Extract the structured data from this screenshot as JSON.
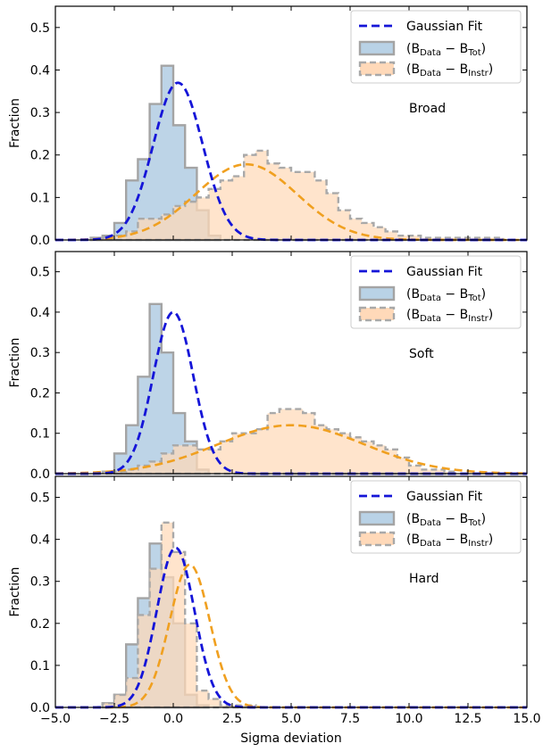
{
  "chart_data": {
    "type": "histogram",
    "layout": "3 vertically stacked panels sharing x-axis",
    "xlabel": "Sigma deviation",
    "ylabel": "Fraction",
    "xlim": [
      -5.0,
      15.0
    ],
    "ylim": [
      0.0,
      0.55
    ],
    "xticks": [
      "−5.0",
      "−2.5",
      "0.0",
      "2.5",
      "5.0",
      "7.5",
      "10.0",
      "12.5",
      "15.0"
    ],
    "yticks": [
      "0.0",
      "0.1",
      "0.2",
      "0.3",
      "0.4",
      "0.5"
    ],
    "bin_width": 0.5,
    "legend": {
      "position": "top-right",
      "entries": [
        {
          "id": "fit",
          "label": "Gaussian Fit",
          "style": "dashed line"
        },
        {
          "id": "tot",
          "label_main": "(B",
          "sub1": "Data",
          "label_mid": " − B",
          "sub2": "Tot",
          "label_end": ")",
          "style": "filled step"
        },
        {
          "id": "instr",
          "label_main": "(B",
          "sub1": "Data",
          "label_mid": " − B",
          "sub2": "Instr",
          "label_end": ")",
          "style": "filled dashed step"
        }
      ]
    },
    "colors": {
      "fit": "#1515d8",
      "tot_fill": "#b9d2e6",
      "tot_edge": "#a4a4a4",
      "instr_fill": "#ffd9b9",
      "instr_edge": "#a9a9a9",
      "overlap_fill": "#d2bcaa",
      "instr_fit": "#f0a020"
    },
    "panels": [
      {
        "name": "Broad",
        "tot": {
          "edges_start": -3.5,
          "values": [
            0.005,
            0.01,
            0.04,
            0.14,
            0.19,
            0.32,
            0.41,
            0.27,
            0.17,
            0.07,
            0.01
          ]
        },
        "instr": {
          "edges_start": -3.5,
          "values": [
            0.005,
            0.005,
            0.01,
            0.02,
            0.05,
            0.05,
            0.06,
            0.08,
            0.09,
            0.1,
            0.12,
            0.14,
            0.15,
            0.2,
            0.21,
            0.18,
            0.17,
            0.16,
            0.16,
            0.14,
            0.11,
            0.07,
            0.05,
            0.04,
            0.03,
            0.02,
            0.01,
            0.01,
            0.005,
            0.005,
            0.005,
            0.005,
            0.005,
            0.005,
            0.005
          ]
        },
        "fit_tot": {
          "mu": 0.2,
          "sigma": 1.05,
          "amp": 0.37
        },
        "fit_instr": {
          "mu": 3.1,
          "sigma": 2.15,
          "amp": 0.178
        }
      },
      {
        "name": "Soft",
        "tot": {
          "edges_start": -2.5,
          "values": [
            0.05,
            0.12,
            0.24,
            0.42,
            0.3,
            0.15,
            0.08,
            0.01
          ]
        },
        "instr": {
          "edges_start": -3.0,
          "values": [
            0.005,
            0.005,
            0.01,
            0.02,
            0.03,
            0.05,
            0.07,
            0.07,
            0.06,
            0.06,
            0.08,
            0.1,
            0.1,
            0.11,
            0.15,
            0.16,
            0.16,
            0.15,
            0.12,
            0.11,
            0.1,
            0.09,
            0.08,
            0.07,
            0.06,
            0.04,
            0.02,
            0.01,
            0.01,
            0.005
          ]
        },
        "fit_tot": {
          "mu": 0.0,
          "sigma": 0.85,
          "amp": 0.4
        },
        "fit_instr": {
          "mu": 5.0,
          "sigma": 3.1,
          "amp": 0.12
        }
      },
      {
        "name": "Hard",
        "tot": {
          "edges_start": -3.0,
          "values": [
            0.01,
            0.03,
            0.15,
            0.26,
            0.39,
            0.31,
            0.2,
            0.03,
            0.005
          ]
        },
        "instr": {
          "edges_start": -3.0,
          "values": [
            0.01,
            0.03,
            0.07,
            0.22,
            0.33,
            0.44,
            0.37,
            0.2,
            0.04,
            0.02,
            0.005,
            0.005,
            0.005
          ]
        },
        "fit_tot": {
          "mu": 0.1,
          "sigma": 0.8,
          "amp": 0.38
        },
        "fit_instr": {
          "mu": 0.7,
          "sigma": 0.85,
          "amp": 0.34
        }
      }
    ]
  }
}
